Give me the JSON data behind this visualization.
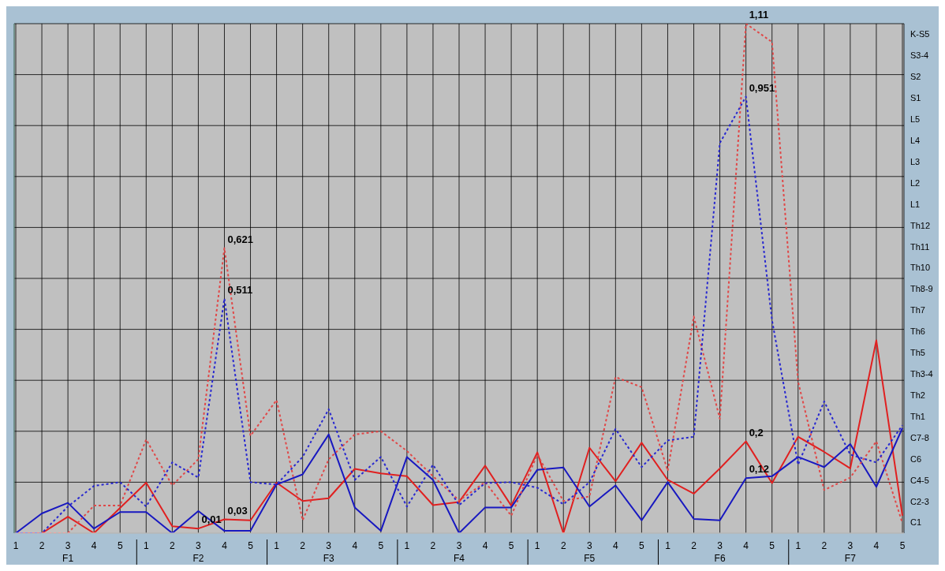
{
  "chart_data": {
    "type": "line",
    "categories": [
      "1",
      "2",
      "3",
      "4",
      "5",
      "1",
      "2",
      "3",
      "4",
      "5",
      "1",
      "2",
      "3",
      "4",
      "5",
      "1",
      "2",
      "3",
      "4",
      "5",
      "1",
      "2",
      "3",
      "4",
      "5",
      "1",
      "2",
      "3",
      "4",
      "5",
      "1",
      "2",
      "3",
      "4",
      "5"
    ],
    "annotations": [
      "F1",
      "F2",
      "F3",
      "F4",
      "F5",
      "F6",
      "F7"
    ],
    "series": [
      {
        "color": "#e02020",
        "line_style": "solid",
        "values": [
          0,
          0,
          0.036,
          0,
          0.055,
          0.11,
          0.015,
          0.01,
          0.03,
          0.028,
          0.11,
          0.07,
          0.076,
          0.14,
          0.13,
          0.124,
          0.061,
          0.068,
          0.147,
          0.06,
          0.176,
          0,
          0.186,
          0.113,
          0.197,
          0.116,
          0.086,
          0.141,
          0.2,
          0.109,
          0.21,
          0.177,
          0.141,
          0.42,
          0.038
        ],
        "value_labels": [
          null,
          null,
          null,
          null,
          null,
          null,
          null,
          "0,01",
          "0,03",
          null,
          null,
          null,
          null,
          null,
          null,
          null,
          null,
          null,
          null,
          null,
          null,
          null,
          null,
          null,
          null,
          null,
          null,
          null,
          "0,2",
          null,
          null,
          null,
          null,
          null,
          null
        ]
      },
      {
        "color": "#1818c0",
        "line_style": "solid",
        "values": [
          0,
          0.043,
          0.066,
          0.01,
          0.046,
          0.046,
          0,
          0.048,
          0.005,
          0.005,
          0.106,
          0.128,
          0.215,
          0.056,
          0.005,
          0.166,
          0.116,
          0,
          0.056,
          0.056,
          0.138,
          0.143,
          0.058,
          0.104,
          0.028,
          0.111,
          0.031,
          0.028,
          0.12,
          0.124,
          0.166,
          0.144,
          0.194,
          0.101,
          0.229
        ],
        "value_labels": [
          null,
          null,
          null,
          null,
          null,
          null,
          null,
          null,
          null,
          null,
          null,
          null,
          null,
          null,
          null,
          null,
          null,
          null,
          null,
          null,
          null,
          null,
          null,
          null,
          null,
          null,
          null,
          null,
          "0,12",
          null,
          null,
          null,
          null,
          null,
          null
        ]
      },
      {
        "color": "#e04848",
        "line_style": "dotted",
        "values": [
          0,
          0,
          0,
          0.06,
          0.06,
          0.204,
          0.104,
          0.161,
          0.621,
          0.212,
          0.29,
          0.028,
          0.161,
          0.215,
          0.222,
          0.179,
          0.124,
          0.071,
          0.111,
          0.038,
          0.171,
          0.07,
          0.08,
          0.34,
          0.318,
          0.136,
          0.472,
          0.249,
          1.11,
          1.07,
          0.33,
          0.094,
          0.121,
          0.2,
          0.022
        ],
        "value_labels": [
          null,
          null,
          null,
          null,
          null,
          null,
          null,
          null,
          "0,621",
          null,
          null,
          null,
          null,
          null,
          null,
          null,
          null,
          null,
          null,
          null,
          null,
          null,
          null,
          null,
          null,
          null,
          null,
          null,
          "1,11",
          null,
          null,
          null,
          null,
          null,
          null
        ]
      },
      {
        "color": "#2828d0",
        "line_style": "dotted",
        "values": [
          0,
          0,
          0.058,
          0.103,
          0.111,
          0.058,
          0.154,
          0.121,
          0.511,
          0.111,
          0.106,
          0.166,
          0.27,
          0.116,
          0.166,
          0.058,
          0.149,
          0.061,
          0.109,
          0.111,
          0.099,
          0.063,
          0.111,
          0.227,
          0.144,
          0.202,
          0.21,
          0.85,
          0.951,
          0.464,
          0.149,
          0.287,
          0.171,
          0.154,
          0.235
        ],
        "value_labels": [
          null,
          null,
          null,
          null,
          null,
          null,
          null,
          null,
          "0,511",
          null,
          null,
          null,
          null,
          null,
          null,
          null,
          null,
          null,
          null,
          null,
          null,
          null,
          null,
          null,
          null,
          null,
          null,
          null,
          "0,951",
          null,
          null,
          null,
          null,
          null,
          null
        ]
      }
    ],
    "ylim": [
      0,
      1.11
    ],
    "y2_categories": [
      "K-S5",
      "S3-4",
      "S2",
      "S1",
      "L5",
      "L4",
      "L3",
      "L2",
      "L1",
      "Th12",
      "Th11",
      "Th10",
      "Th8-9",
      "Th7",
      "Th6",
      "Th5",
      "Th3-4",
      "Th2",
      "Th1",
      "C7-8",
      "C6",
      "C4-5",
      "C2-3",
      "C1"
    ],
    "grid": true,
    "legend": false,
    "marker": "none",
    "tick_labels": [
      "x",
      "y2"
    ]
  }
}
